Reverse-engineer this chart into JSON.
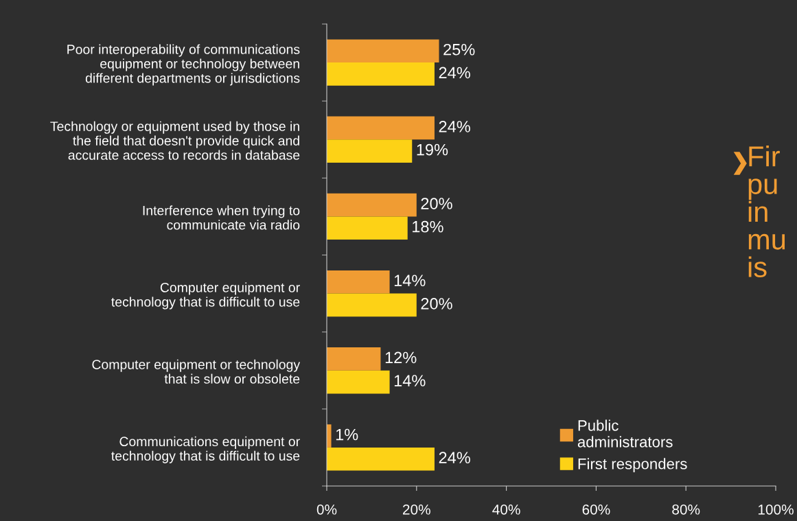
{
  "chart_data": {
    "type": "bar",
    "orientation": "horizontal",
    "categories": [
      "Poor interoperability of communications\nequipment or technology between\ndifferent departments or jurisdictions",
      "Technology or equipment used by those in\nthe field that doesn't provide quick and\naccurate access to records in database",
      "Interference when trying to\ncommunicate via radio",
      "Computer equipment or\ntechnology that is difficult to use",
      "Computer equipment or technology\nthat is slow or obsolete",
      "Communications equipment or\ntechnology that is difficult to use"
    ],
    "series": [
      {
        "name": "Public\nadministrators",
        "color": "#f09c33",
        "values": [
          25,
          24,
          20,
          14,
          12,
          1
        ],
        "value_labels": [
          "25%",
          "24%",
          "20%",
          "14%",
          "12%",
          "1%"
        ]
      },
      {
        "name": "First responders",
        "color": "#fdd216",
        "values": [
          24,
          19,
          18,
          20,
          14,
          24
        ],
        "value_labels": [
          "24%",
          "19%",
          "18%",
          "20%",
          "14%",
          "24%"
        ]
      }
    ],
    "xlim": [
      0,
      100
    ],
    "xticks": [
      {
        "value": 0,
        "label": "0%"
      },
      {
        "value": 20,
        "label": "20%"
      },
      {
        "value": 40,
        "label": "40%"
      },
      {
        "value": 60,
        "label": "60%"
      },
      {
        "value": 80,
        "label": "80%"
      },
      {
        "value": 100,
        "label": "100%"
      }
    ],
    "grid": false,
    "legend": "bottom right",
    "annotations": [
      "Fir\npu\nin\nmu\nis"
    ]
  }
}
